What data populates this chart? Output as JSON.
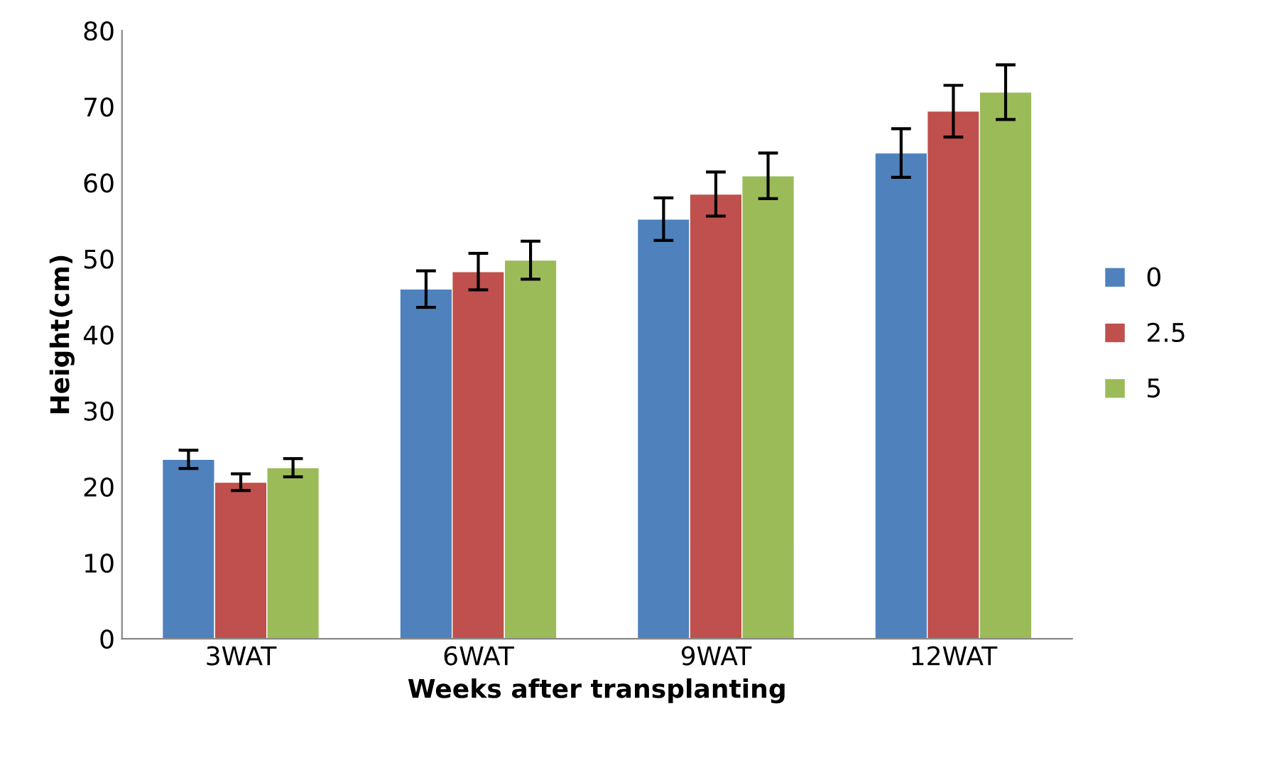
{
  "chart_data": {
    "type": "bar",
    "xlabel": "Weeks after transplanting",
    "ylabel": "Height(cm)",
    "categories": [
      "3WAT",
      "6WAT",
      "9WAT",
      "12WAT"
    ],
    "series": [
      {
        "name": "0",
        "color": "#4f81bd",
        "values": [
          23.6,
          46.0,
          55.2,
          63.9
        ],
        "errors": [
          1.2,
          2.4,
          2.8,
          3.2
        ]
      },
      {
        "name": "2.5",
        "color": "#c0504d",
        "values": [
          20.6,
          48.3,
          58.5,
          69.4
        ],
        "errors": [
          1.1,
          2.4,
          2.9,
          3.4
        ]
      },
      {
        "name": "5",
        "color": "#9bbb59",
        "values": [
          22.5,
          49.8,
          60.9,
          71.9
        ],
        "errors": [
          1.2,
          2.5,
          3.0,
          3.6
        ]
      }
    ],
    "ylim": [
      0,
      80
    ],
    "yticks": [
      0,
      10,
      20,
      30,
      40,
      50,
      60,
      70,
      80
    ],
    "grid": false,
    "legend": "right"
  }
}
